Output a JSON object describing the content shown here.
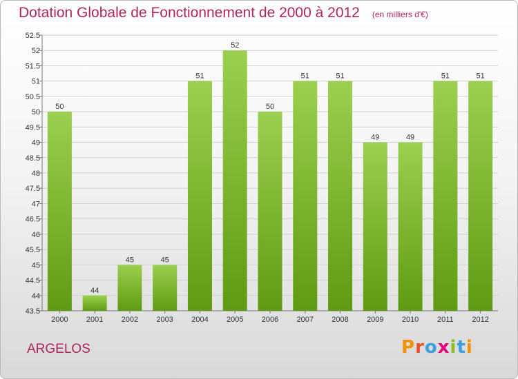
{
  "header": {
    "title": "Dotation Globale de Fonctionnement de 2000 à 2012",
    "subtitle": "(en milliers d'€)"
  },
  "footer": {
    "place": "ARGELOS",
    "brand": "Proxiti"
  },
  "colors": {
    "title": "#b0245e",
    "bar_top": "#9ccf4f",
    "bar_bottom": "#5f9b12",
    "grid": "#d0d0d0",
    "logo_letters": [
      "#f39200",
      "#e9502b",
      "#3aa0dc",
      "#e6007e",
      "#8cbf26",
      "#3aa0dc",
      "#f39200"
    ]
  },
  "chart_data": {
    "type": "bar",
    "title": "Dotation Globale de Fonctionnement de 2000 à 2012",
    "subtitle": "(en milliers d'€)",
    "xlabel": "",
    "ylabel": "",
    "categories": [
      "2000",
      "2001",
      "2002",
      "2003",
      "2004",
      "2005",
      "2006",
      "2007",
      "2008",
      "2009",
      "2010",
      "2011",
      "2012"
    ],
    "values": [
      50,
      44,
      45,
      45,
      51,
      52,
      50,
      51,
      51,
      49,
      49,
      51,
      51
    ],
    "ylim": [
      43.5,
      52.5
    ],
    "yticks": [
      "43.5",
      "44",
      "44.5",
      "45",
      "45.5",
      "46",
      "46.5",
      "47",
      "47.5",
      "48",
      "48.5",
      "49",
      "49.5",
      "50",
      "50.5",
      "51",
      "51.5",
      "52",
      "52.5"
    ],
    "grid": true,
    "legend": "none"
  }
}
